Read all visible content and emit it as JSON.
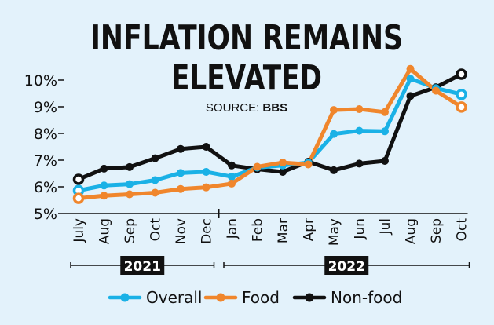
{
  "chart_data": {
    "type": "line",
    "title_line1": "INFLATION REMAINS",
    "title_line2": "ELEVATED",
    "source_label": "SOURCE: ",
    "source_value": "BBS",
    "categories": [
      "July",
      "Aug",
      "Sep",
      "Oct",
      "Nov",
      "Dec",
      "Jan",
      "Feb",
      "Mar",
      "Apr",
      "May",
      "Jun",
      "Jul",
      "Aug",
      "Sep",
      "Oct"
    ],
    "year_groups": [
      {
        "label": "2021",
        "from": 0,
        "to": 5
      },
      {
        "label": "2022",
        "from": 6,
        "to": 15
      }
    ],
    "ylim": [
      5,
      10.5
    ],
    "yticks": [
      5,
      6,
      7,
      8,
      9,
      10
    ],
    "ytick_labels": [
      "5%",
      "6%",
      "7%",
      "8%",
      "9%",
      "10%"
    ],
    "series": [
      {
        "name": "Overall",
        "color": "#1ab1e6",
        "values": [
          5.86,
          6.05,
          6.1,
          6.25,
          6.52,
          6.56,
          6.38,
          6.72,
          6.8,
          6.91,
          7.98,
          8.1,
          8.08,
          10.05,
          9.7,
          9.46
        ]
      },
      {
        "name": "Food",
        "color": "#f0862c",
        "values": [
          5.57,
          5.67,
          5.72,
          5.78,
          5.92,
          5.98,
          6.12,
          6.75,
          6.91,
          6.84,
          8.88,
          8.91,
          8.8,
          10.42,
          9.6,
          8.99
        ]
      },
      {
        "name": "Non-food",
        "color": "#111111",
        "values": [
          6.28,
          6.68,
          6.74,
          7.07,
          7.42,
          7.5,
          6.8,
          6.66,
          6.56,
          6.94,
          6.62,
          6.87,
          6.97,
          9.4,
          9.73,
          10.22
        ]
      }
    ]
  }
}
